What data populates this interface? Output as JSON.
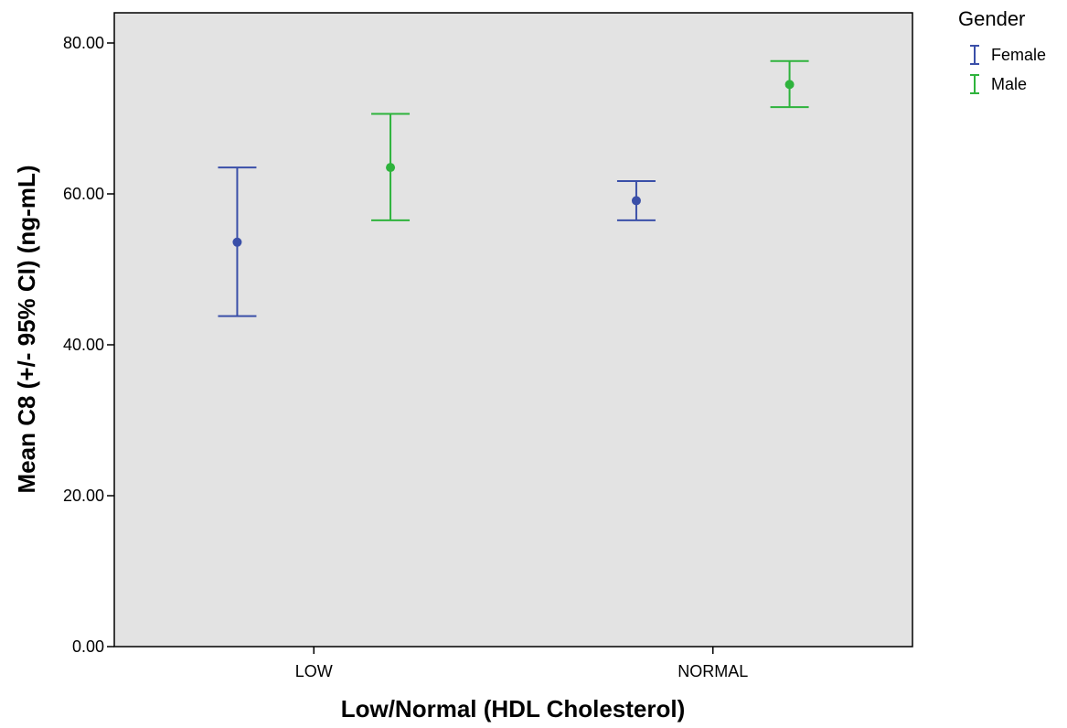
{
  "chart_data": {
    "type": "errorbar",
    "title": "",
    "xlabel": "Low/Normal (HDL Cholesterol)",
    "ylabel": "Mean C8 (+/- 95% CI) (ng-mL)",
    "categories": [
      "LOW",
      "NORMAL"
    ],
    "ylim": [
      0,
      84
    ],
    "yticks": [
      0,
      20,
      40,
      60,
      80
    ],
    "ytick_labels": [
      "0.00",
      "20.00",
      "40.00",
      "60.00",
      "80.00"
    ],
    "grid": false,
    "legend": {
      "title": "Gender",
      "position": "top-right-outside"
    },
    "series": [
      {
        "name": "Female",
        "color": "#3a4fa8",
        "mean": [
          53.6,
          59.1
        ],
        "lower": [
          43.8,
          56.5
        ],
        "upper": [
          63.5,
          61.7
        ]
      },
      {
        "name": "Male",
        "color": "#2eb33c",
        "mean": [
          63.5,
          74.5
        ],
        "lower": [
          56.5,
          71.5
        ],
        "upper": [
          70.6,
          77.6
        ]
      }
    ],
    "plot_background": "#e3e3e3"
  }
}
